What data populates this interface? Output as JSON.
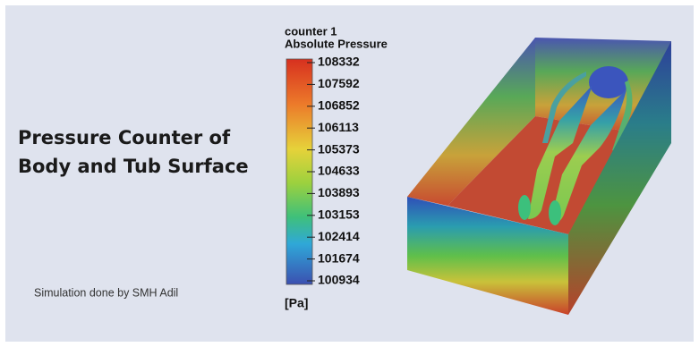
{
  "heading": {
    "lines": [
      "Pressure Counter of",
      "Body and Tub Surface"
    ]
  },
  "credit": "Simulation done by SMH Adil",
  "colorbar": {
    "title_lines": [
      "counter 1",
      "Absolute Pressure"
    ],
    "ticks": [
      108332,
      107592,
      106852,
      106113,
      105373,
      104633,
      103893,
      103153,
      102414,
      101674,
      100934
    ],
    "unit": "[Pa]"
  }
}
